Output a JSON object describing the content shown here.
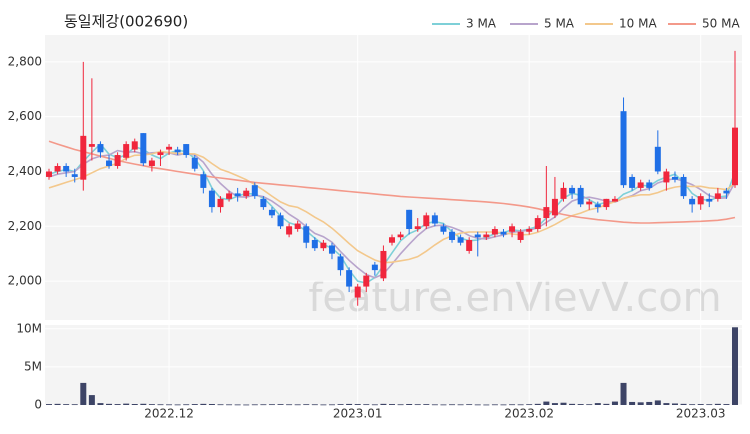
{
  "chart_data": {
    "type": "candlestick",
    "title": "동일제강(002690)",
    "watermark": "feature.enVievV.com",
    "up_color": "#f0263c",
    "down_color": "#1f6fe6",
    "categories": [
      null,
      null,
      null,
      null,
      null,
      null,
      null,
      null,
      null,
      null,
      null,
      null,
      null,
      null,
      "2022.12",
      null,
      null,
      null,
      null,
      null,
      null,
      null,
      null,
      null,
      null,
      null,
      null,
      null,
      null,
      null,
      null,
      null,
      null,
      null,
      null,
      null,
      "2023.01",
      null,
      null,
      null,
      null,
      null,
      null,
      null,
      null,
      null,
      null,
      null,
      null,
      null,
      null,
      null,
      null,
      null,
      null,
      null,
      "2023.02",
      null,
      null,
      null,
      null,
      null,
      null,
      null,
      null,
      null,
      null,
      null,
      null,
      null,
      null,
      null,
      null,
      null,
      null,
      null,
      "2023.03",
      null,
      null,
      null,
      null
    ],
    "open": [
      2380,
      2400,
      2420,
      2390,
      2370,
      2490,
      2500,
      2440,
      2420,
      2450,
      2480,
      2540,
      2420,
      2460,
      2480,
      2480,
      2500,
      2450,
      2390,
      2330,
      2270,
      2300,
      2320,
      2310,
      2350,
      2300,
      2260,
      2240,
      2170,
      2190,
      2200,
      2150,
      2120,
      2130,
      2090,
      2040,
      1940,
      1980,
      2060,
      2010,
      2140,
      2160,
      2260,
      2190,
      2200,
      2240,
      2200,
      2180,
      2160,
      2110,
      2170,
      2160,
      2170,
      2180,
      2180,
      2150,
      2180,
      2190,
      2230,
      2240,
      2300,
      2340,
      2340,
      2280,
      2280,
      2270,
      2290,
      2620,
      2380,
      2340,
      2360,
      2490,
      2360,
      2380,
      2380,
      2300,
      2280,
      2300,
      2300,
      2330,
      2350
    ],
    "high": [
      2410,
      2430,
      2430,
      2410,
      2800,
      2740,
      2510,
      2460,
      2470,
      2510,
      2520,
      2540,
      2450,
      2480,
      2500,
      2490,
      2500,
      2460,
      2400,
      2340,
      2310,
      2330,
      2340,
      2340,
      2360,
      2310,
      2270,
      2250,
      2210,
      2220,
      2210,
      2160,
      2150,
      2140,
      2100,
      2050,
      1990,
      2030,
      2070,
      2130,
      2170,
      2180,
      2260,
      2230,
      2250,
      2250,
      2210,
      2190,
      2170,
      2160,
      2180,
      2180,
      2200,
      2190,
      2210,
      2190,
      2200,
      2240,
      2420,
      2380,
      2360,
      2350,
      2350,
      2300,
      2290,
      2300,
      2310,
      2670,
      2390,
      2370,
      2370,
      2550,
      2410,
      2400,
      2390,
      2310,
      2320,
      2320,
      2340,
      2340,
      2840
    ],
    "low": [
      2370,
      2390,
      2380,
      2360,
      2330,
      2440,
      2450,
      2410,
      2410,
      2440,
      2470,
      2420,
      2400,
      2420,
      2460,
      2460,
      2450,
      2400,
      2320,
      2250,
      2250,
      2290,
      2290,
      2300,
      2300,
      2260,
      2230,
      2190,
      2160,
      2180,
      2120,
      2110,
      2110,
      2080,
      2020,
      1960,
      1910,
      1960,
      2020,
      2000,
      2130,
      2150,
      2170,
      2180,
      2190,
      2200,
      2170,
      2140,
      2130,
      2100,
      2090,
      2150,
      2160,
      2160,
      2160,
      2140,
      2170,
      2180,
      2200,
      2230,
      2290,
      2300,
      2270,
      2260,
      2250,
      2260,
      2290,
      2340,
      2330,
      2330,
      2330,
      2390,
      2330,
      2360,
      2300,
      2250,
      2260,
      2270,
      2290,
      2300,
      2340
    ],
    "close": [
      2400,
      2420,
      2400,
      2380,
      2530,
      2500,
      2470,
      2420,
      2460,
      2500,
      2510,
      2430,
      2440,
      2470,
      2490,
      2470,
      2460,
      2410,
      2340,
      2270,
      2300,
      2320,
      2310,
      2330,
      2310,
      2270,
      2240,
      2200,
      2200,
      2210,
      2140,
      2120,
      2140,
      2100,
      2040,
      1980,
      1980,
      2020,
      2040,
      2110,
      2160,
      2170,
      2190,
      2200,
      2240,
      2210,
      2180,
      2150,
      2140,
      2150,
      2160,
      2170,
      2190,
      2170,
      2200,
      2180,
      2190,
      2230,
      2270,
      2300,
      2340,
      2320,
      2280,
      2290,
      2270,
      2300,
      2300,
      2350,
      2340,
      2360,
      2340,
      2400,
      2400,
      2370,
      2310,
      2280,
      2310,
      2290,
      2320,
      2320,
      2560
    ],
    "ylim": [
      1858,
      2898
    ],
    "yticks": [
      {
        "value": 2000,
        "label": "2,000"
      },
      {
        "value": 2200,
        "label": "2,200"
      },
      {
        "value": 2400,
        "label": "2,400"
      },
      {
        "value": 2600,
        "label": "2,600"
      },
      {
        "value": 2800,
        "label": "2,800"
      }
    ],
    "series": [
      {
        "name": "3 MA",
        "color": "#7ed0d8",
        "values": [
          2390,
          2400,
          2407,
          2400,
          2437,
          2470,
          2500,
          2463,
          2450,
          2460,
          2490,
          2480,
          2460,
          2447,
          2467,
          2477,
          2473,
          2447,
          2403,
          2340,
          2303,
          2297,
          2310,
          2320,
          2317,
          2303,
          2273,
          2237,
          2213,
          2203,
          2183,
          2157,
          2133,
          2120,
          2093,
          2040,
          2000,
          1993,
          2013,
          2057,
          2103,
          2147,
          2173,
          2187,
          2210,
          2217,
          2210,
          2180,
          2157,
          2147,
          2150,
          2160,
          2173,
          2177,
          2187,
          2183,
          2190,
          2200,
          2230,
          2267,
          2303,
          2320,
          2313,
          2297,
          2280,
          2287,
          2290,
          2317,
          2330,
          2350,
          2347,
          2367,
          2380,
          2390,
          2360,
          2320,
          2300,
          2293,
          2307,
          2310,
          2400
        ]
      },
      {
        "name": "5 MA",
        "color": "#b8a4cc",
        "values": [
          2380,
          2390,
          2395,
          2400,
          2426,
          2446,
          2456,
          2460,
          2476,
          2470,
          2472,
          2464,
          2468,
          2470,
          2468,
          2460,
          2466,
          2460,
          2434,
          2390,
          2356,
          2328,
          2308,
          2306,
          2314,
          2308,
          2292,
          2270,
          2244,
          2224,
          2198,
          2174,
          2162,
          2142,
          2108,
          2076,
          2048,
          2024,
          2012,
          2026,
          2062,
          2100,
          2134,
          2166,
          2192,
          2202,
          2204,
          2196,
          2184,
          2166,
          2156,
          2154,
          2162,
          2168,
          2178,
          2182,
          2186,
          2194,
          2214,
          2234,
          2266,
          2292,
          2302,
          2306,
          2300,
          2292,
          2288,
          2302,
          2312,
          2330,
          2338,
          2358,
          2368,
          2374,
          2364,
          2352,
          2334,
          2312,
          2302,
          2304,
          2360
        ]
      },
      {
        "name": "10 MA",
        "color": "#f3c88c",
        "values": [
          2340,
          2350,
          2360,
          2370,
          2380,
          2395,
          2410,
          2420,
          2430,
          2448,
          2459,
          2460,
          2464,
          2473,
          2469,
          2466,
          2465,
          2464,
          2452,
          2429,
          2408,
          2397,
          2384,
          2370,
          2352,
          2332,
          2310,
          2289,
          2275,
          2269,
          2253,
          2233,
          2216,
          2193,
          2166,
          2137,
          2111,
          2093,
          2077,
          2067,
          2069,
          2074,
          2079,
          2089,
          2109,
          2132,
          2152,
          2165,
          2175,
          2179,
          2179,
          2179,
          2179,
          2176,
          2172,
          2169,
          2170,
          2178,
          2191,
          2206,
          2224,
          2239,
          2248,
          2260,
          2267,
          2279,
          2290,
          2302,
          2309,
          2315,
          2315,
          2323,
          2335,
          2343,
          2347,
          2345,
          2346,
          2340,
          2338,
          2334,
          2356
        ]
      },
      {
        "name": "50 MA",
        "color": "#f3998a",
        "values": [
          2510,
          2500,
          2490,
          2480,
          2472,
          2464,
          2456,
          2448,
          2440,
          2433,
          2427,
          2421,
          2415,
          2410,
          2405,
          2400,
          2395,
          2390,
          2385,
          2380,
          2376,
          2372,
          2368,
          2364,
          2360,
          2357,
          2354,
          2351,
          2348,
          2345,
          2342,
          2339,
          2336,
          2333,
          2330,
          2327,
          2324,
          2321,
          2318,
          2315,
          2312,
          2309,
          2307,
          2305,
          2303,
          2301,
          2299,
          2297,
          2295,
          2293,
          2291,
          2289,
          2286,
          2283,
          2279,
          2275,
          2270,
          2264,
          2257,
          2250,
          2243,
          2237,
          2232,
          2228,
          2224,
          2221,
          2218,
          2215,
          2213,
          2212,
          2212,
          2213,
          2214,
          2215,
          2216,
          2217,
          2218,
          2220,
          2222,
          2226,
          2232
        ]
      }
    ],
    "volume": {
      "color": "#3d4466",
      "values": [
        120000,
        150000,
        110000,
        100000,
        2900000,
        1300000,
        250000,
        150000,
        120000,
        180000,
        130000,
        160000,
        110000,
        90000,
        80000,
        70000,
        90000,
        120000,
        150000,
        130000,
        90000,
        80000,
        70000,
        60000,
        80000,
        90000,
        100000,
        110000,
        90000,
        80000,
        100000,
        90000,
        70000,
        80000,
        110000,
        140000,
        120000,
        100000,
        80000,
        150000,
        120000,
        90000,
        130000,
        100000,
        110000,
        80000,
        70000,
        90000,
        80000,
        100000,
        70000,
        60000,
        80000,
        70000,
        90000,
        80000,
        100000,
        150000,
        450000,
        250000,
        300000,
        150000,
        120000,
        100000,
        250000,
        150000,
        450000,
        2900000,
        400000,
        350000,
        400000,
        600000,
        250000,
        200000,
        150000,
        100000,
        120000,
        100000,
        150000,
        120000,
        10200000
      ],
      "ylim": [
        0,
        10500000
      ],
      "yticks": [
        0,
        {
          "value": 5000000,
          "label": "5M"
        },
        {
          "value": 10000000,
          "label": "10M"
        }
      ]
    }
  }
}
